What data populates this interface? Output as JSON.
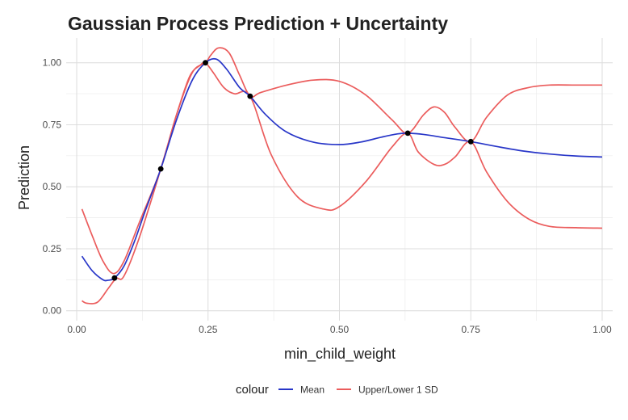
{
  "chart_data": {
    "type": "line",
    "title": "Gaussian Process Prediction + Uncertainty",
    "xlabel": "min_child_weight",
    "ylabel": "Prediction",
    "xlim": [
      -0.02,
      1.02
    ],
    "ylim": [
      -0.04,
      1.1
    ],
    "x_ticks": [
      0.0,
      0.25,
      0.5,
      0.75,
      1.0
    ],
    "x_tick_labels": [
      "0.00",
      "0.25",
      "0.50",
      "0.75",
      "1.00"
    ],
    "y_ticks": [
      0.0,
      0.25,
      0.5,
      0.75,
      1.0
    ],
    "y_tick_labels": [
      "0.00",
      "0.25",
      "0.50",
      "0.75",
      "1.00"
    ],
    "grid": true,
    "legend": {
      "title": "colour",
      "position": "bottom",
      "entries": [
        {
          "label": "Mean",
          "color": "#2836c8"
        },
        {
          "label": "Upper/Lower 1 SD",
          "color": "#eb5c5c"
        }
      ]
    },
    "series": [
      {
        "name": "Mean",
        "color": "#2836c8",
        "x": [
          0.01,
          0.03,
          0.05,
          0.06,
          0.072,
          0.09,
          0.11,
          0.13,
          0.16,
          0.19,
          0.22,
          0.245,
          0.265,
          0.285,
          0.31,
          0.33,
          0.36,
          0.4,
          0.45,
          0.5,
          0.54,
          0.58,
          0.61,
          0.63,
          0.66,
          0.7,
          0.75,
          0.8,
          0.85,
          0.9,
          0.95,
          1.0
        ],
        "y": [
          0.22,
          0.16,
          0.125,
          0.123,
          0.132,
          0.18,
          0.28,
          0.4,
          0.572,
          0.77,
          0.93,
          1.0,
          1.015,
          0.975,
          0.9,
          0.865,
          0.79,
          0.72,
          0.68,
          0.67,
          0.68,
          0.7,
          0.713,
          0.716,
          0.711,
          0.698,
          0.682,
          0.662,
          0.644,
          0.632,
          0.624,
          0.62
        ]
      },
      {
        "name": "Upper 1 SD",
        "color": "#eb5c5c",
        "x": [
          0.01,
          0.03,
          0.05,
          0.07,
          0.09,
          0.12,
          0.16,
          0.19,
          0.22,
          0.245,
          0.255,
          0.27,
          0.29,
          0.31,
          0.33,
          0.35,
          0.4,
          0.45,
          0.5,
          0.55,
          0.6,
          0.63,
          0.66,
          0.68,
          0.7,
          0.72,
          0.75,
          0.78,
          0.82,
          0.86,
          0.9,
          0.95,
          1.0
        ],
        "y": [
          0.41,
          0.3,
          0.2,
          0.15,
          0.2,
          0.36,
          0.572,
          0.79,
          0.96,
          1.0,
          1.03,
          1.06,
          1.04,
          0.95,
          0.865,
          0.88,
          0.91,
          0.93,
          0.925,
          0.87,
          0.77,
          0.716,
          0.79,
          0.822,
          0.8,
          0.74,
          0.682,
          0.78,
          0.87,
          0.9,
          0.91,
          0.91,
          0.91
        ]
      },
      {
        "name": "Lower 1 SD",
        "color": "#eb5c5c",
        "x": [
          0.01,
          0.02,
          0.04,
          0.06,
          0.075,
          0.09,
          0.12,
          0.16,
          0.19,
          0.215,
          0.235,
          0.245,
          0.26,
          0.28,
          0.3,
          0.33,
          0.37,
          0.42,
          0.47,
          0.5,
          0.55,
          0.6,
          0.63,
          0.65,
          0.68,
          0.7,
          0.72,
          0.75,
          0.78,
          0.82,
          0.86,
          0.9,
          0.95,
          1.0
        ],
        "y": [
          0.04,
          0.03,
          0.035,
          0.09,
          0.13,
          0.14,
          0.3,
          0.572,
          0.79,
          0.945,
          0.99,
          1.0,
          0.96,
          0.9,
          0.875,
          0.865,
          0.63,
          0.46,
          0.41,
          0.42,
          0.52,
          0.66,
          0.716,
          0.64,
          0.59,
          0.59,
          0.62,
          0.682,
          0.56,
          0.44,
          0.37,
          0.34,
          0.335,
          0.333
        ]
      }
    ],
    "observations": {
      "x": [
        0.072,
        0.16,
        0.245,
        0.33,
        0.63,
        0.75
      ],
      "y": [
        0.132,
        0.572,
        1.0,
        0.865,
        0.716,
        0.682
      ],
      "color": "#000000"
    }
  }
}
